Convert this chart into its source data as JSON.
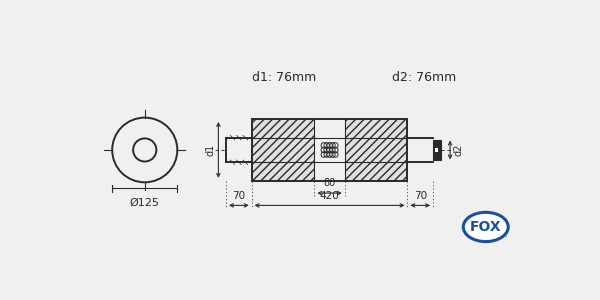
{
  "bg_color": "#f0f0f0",
  "line_color": "#2a2a2a",
  "fox_blue": "#1a4fa0",
  "d1_label": "d1: 76mm",
  "d2_label": "d2: 76mm",
  "phi_label": "Ø125",
  "dim_70_left": "70",
  "dim_420": "420",
  "dim_80": "80",
  "dim_70_right": "70",
  "d1_arrow": "d1",
  "d2_arrow": "d2"
}
